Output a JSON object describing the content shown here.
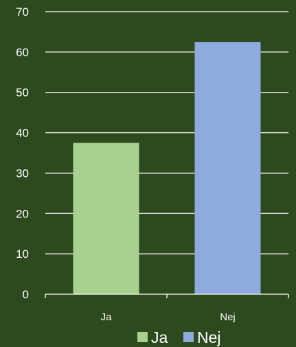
{
  "chart_data": {
    "type": "bar",
    "categories": [
      "Ja",
      "Nej"
    ],
    "values": [
      37.5,
      62.5
    ],
    "ylim": [
      0,
      70
    ],
    "yticks": [
      "0",
      "10",
      "20",
      "30",
      "40",
      "50",
      "60",
      "70"
    ],
    "grid": true,
    "legend_position": "bottom",
    "legend": [
      {
        "label": "Ja",
        "color": "#a9d18e"
      },
      {
        "label": "Nej",
        "color": "#8faadc"
      }
    ],
    "colors": [
      "#a9d18e",
      "#8faadc"
    ],
    "background_color": "#2d4a1f",
    "grid_color": "#ffffff",
    "text_color": "#ffffff"
  }
}
